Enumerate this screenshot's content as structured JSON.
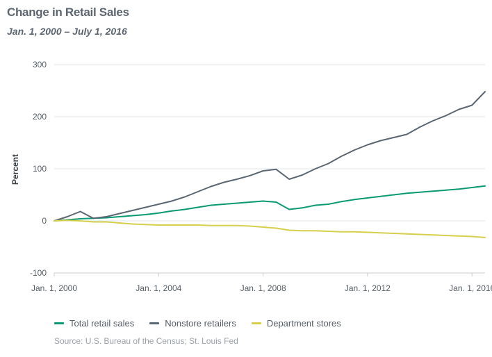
{
  "header": {
    "title": "Change in Retail Sales",
    "subtitle": "Jan. 1, 2000 – July 1, 2016"
  },
  "source": "Source: U.S. Bureau of the Census; St. Louis Fed",
  "colors": {
    "total": "#0a9a73",
    "nonstore": "#5a6672",
    "department": "#d5cf4b",
    "grid": "#e1e4e7",
    "axis": "#c8ccd0"
  },
  "chart_data": {
    "type": "line",
    "title": "Change in Retail Sales",
    "subtitle": "Jan. 1, 2000 – July 1, 2016",
    "xlabel": "",
    "ylabel": "Percent",
    "ylim": [
      -100,
      300
    ],
    "xlim": [
      2000.0,
      2016.5
    ],
    "yticks": [
      300,
      200,
      100,
      0,
      -100
    ],
    "xticks": [
      {
        "label": "Jan. 1, 2000",
        "value": 2000.0
      },
      {
        "label": "Jan. 1, 2004",
        "value": 2004.0
      },
      {
        "label": "Jan. 1, 2008",
        "value": 2008.0
      },
      {
        "label": "Jan. 1, 2012",
        "value": 2012.0
      },
      {
        "label": "Jan. 1, 2016",
        "value": 2016.0
      }
    ],
    "grid": true,
    "legend_position": "bottom",
    "x": [
      2000.0,
      2000.5,
      2001.0,
      2001.5,
      2002.0,
      2002.5,
      2003.0,
      2003.5,
      2004.0,
      2004.5,
      2005.0,
      2005.5,
      2006.0,
      2006.5,
      2007.0,
      2007.5,
      2008.0,
      2008.5,
      2009.0,
      2009.5,
      2010.0,
      2010.5,
      2011.0,
      2011.5,
      2012.0,
      2012.5,
      2013.0,
      2013.5,
      2014.0,
      2014.5,
      2015.0,
      2015.5,
      2016.0,
      2016.5
    ],
    "series": [
      {
        "name": "Total retail sales",
        "color": "#0a9a73",
        "values": [
          0,
          2,
          4,
          5,
          6,
          8,
          10,
          12,
          15,
          19,
          22,
          26,
          30,
          32,
          34,
          36,
          38,
          36,
          22,
          25,
          30,
          32,
          37,
          41,
          44,
          47,
          50,
          53,
          55,
          57,
          59,
          61,
          64,
          67
        ]
      },
      {
        "name": "Nonstore retailers",
        "color": "#5a6672",
        "values": [
          0,
          8,
          18,
          5,
          8,
          14,
          20,
          26,
          32,
          38,
          46,
          56,
          66,
          74,
          80,
          87,
          96,
          99,
          80,
          88,
          100,
          110,
          124,
          136,
          146,
          154,
          160,
          166,
          180,
          192,
          202,
          214,
          222,
          248
        ]
      },
      {
        "name": "Department stores",
        "color": "#d5cf4b",
        "values": [
          0,
          1,
          0,
          -2,
          -2,
          -4,
          -6,
          -7,
          -8,
          -8,
          -8,
          -8,
          -9,
          -9,
          -9,
          -10,
          -12,
          -14,
          -18,
          -19,
          -19,
          -20,
          -21,
          -21,
          -22,
          -23,
          -24,
          -25,
          -26,
          -27,
          -28,
          -29,
          -30,
          -32
        ]
      }
    ]
  }
}
